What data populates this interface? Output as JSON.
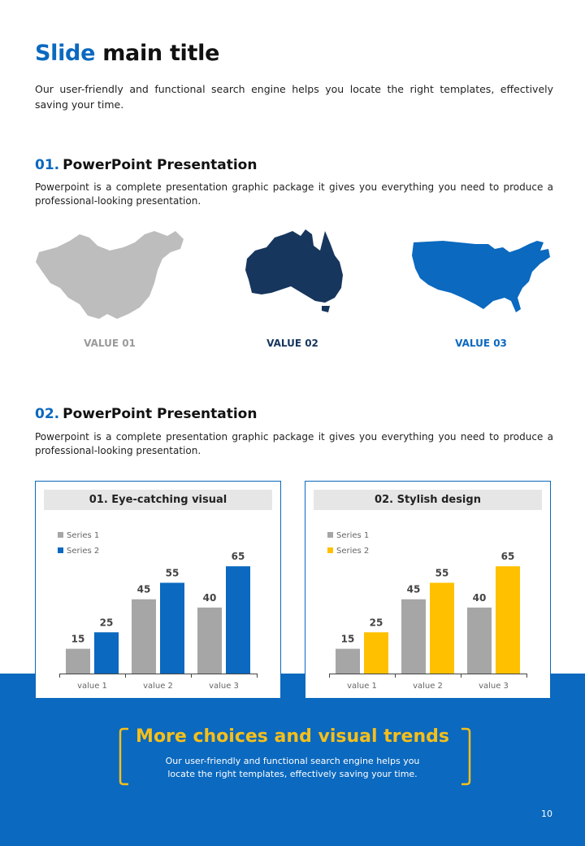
{
  "header": {
    "title_accent": "Slide",
    "title_rest": "main title",
    "intro": "Our user-friendly and functional search engine helps you locate the right templates, effectively saving your time."
  },
  "section1": {
    "number": "01.",
    "heading": "PowerPoint Presentation",
    "text": "Powerpoint is a complete presentation graphic package it gives you everything you need to produce a professional-looking presentation.",
    "maps": [
      {
        "label": "VALUE 01",
        "color": "#bdbdbd",
        "icon": "china-map-icon"
      },
      {
        "label": "VALUE 02",
        "color": "#17365d",
        "icon": "australia-map-icon"
      },
      {
        "label": "VALUE 03",
        "color": "#0b69bf",
        "icon": "usa-map-icon"
      }
    ]
  },
  "section2": {
    "number": "02.",
    "heading": "PowerPoint Presentation",
    "text": "Powerpoint is a complete presentation graphic package it gives you everything you need to produce a professional-looking presentation."
  },
  "chart_data": [
    {
      "type": "bar",
      "title": "01. Eye-catching visual",
      "categories": [
        "value 1",
        "value 2",
        "value 3"
      ],
      "series": [
        {
          "name": "Series 1",
          "values": [
            15,
            45,
            40
          ],
          "color": "#a6a6a6"
        },
        {
          "name": "Series 2",
          "values": [
            25,
            55,
            65
          ],
          "color": "#0b69bf"
        }
      ],
      "ylim": [
        0,
        70
      ],
      "grid": false,
      "legend": "top-left"
    },
    {
      "type": "bar",
      "title": "02. Stylish design",
      "categories": [
        "value 1",
        "value 2",
        "value 3"
      ],
      "series": [
        {
          "name": "Series 1",
          "values": [
            15,
            45,
            40
          ],
          "color": "#a6a6a6"
        },
        {
          "name": "Series 2",
          "values": [
            25,
            55,
            65
          ],
          "color": "#ffc000"
        }
      ],
      "ylim": [
        0,
        70
      ],
      "grid": false,
      "legend": "top-left"
    }
  ],
  "footer": {
    "cta_title": "More choices and visual trends",
    "cta_text": "Our user-friendly and functional search engine helps you locate the right templates, effectively saving your time.",
    "page_number": "10"
  }
}
